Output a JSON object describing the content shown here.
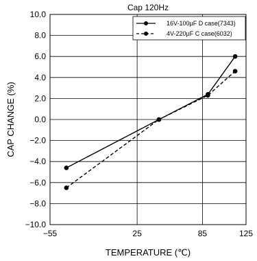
{
  "chart_data": {
    "type": "line",
    "title": "Cap 120Hz",
    "xlabel": "TEMPERATURE (℃)",
    "ylabel": "CAP  CHANGE  (%)",
    "xlim": [
      -55,
      125
    ],
    "ylim": [
      -10,
      10
    ],
    "xticks": [
      "−55",
      "25",
      "85",
      "125"
    ],
    "yticks": [
      "10.0",
      "8.0",
      "6.0",
      "4.0",
      "2.0",
      "0.0",
      "−2.0",
      "−4.0",
      "−6.0",
      "−8.0",
      "−10.0"
    ],
    "grid": true,
    "legend_position": "top-right",
    "x": [
      -40,
      45,
      90,
      115
    ],
    "series": [
      {
        "name": "16V-100µF D case(7343)",
        "style": "solid",
        "color": "#000000",
        "values": [
          -4.6,
          0.0,
          2.4,
          6.0
        ]
      },
      {
        "name": "4V-220µF C case(6032)",
        "style": "dashed",
        "color": "#000000",
        "values": [
          -6.5,
          0.0,
          2.3,
          4.6
        ]
      }
    ]
  }
}
